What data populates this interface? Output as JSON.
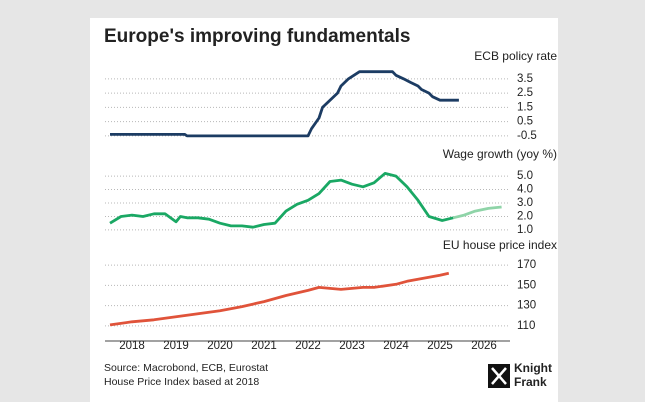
{
  "title": "Europe's improving fundamentals",
  "source": [
    "Source: Macrobond, ECB, Eurostat",
    "House Price Index based at 2018"
  ],
  "logo": [
    "Knight",
    "Frank"
  ],
  "chart_data": [
    {
      "type": "line",
      "title": "ECB policy rate",
      "x": [
        2018.0,
        2019.7,
        2019.75,
        2022.5,
        2022.58,
        2022.75,
        2022.83,
        2023.0,
        2023.17,
        2023.25,
        2023.42,
        2023.67,
        2024.42,
        2024.5,
        2024.67,
        2024.83,
        2025.0,
        2025.08,
        2025.25,
        2025.33,
        2025.5,
        2025.93
      ],
      "series": [
        {
          "color": "#1c3c63",
          "values": [
            -0.4,
            -0.4,
            -0.5,
            -0.5,
            0,
            0.75,
            1.5,
            2.0,
            2.5,
            3.0,
            3.5,
            4.0,
            4.0,
            3.75,
            3.5,
            3.25,
            3.0,
            2.75,
            2.5,
            2.25,
            2.0,
            2.0
          ]
        }
      ],
      "xlim": [
        2018,
        2027
      ],
      "ylim": [
        -1.0,
        4.4
      ],
      "yticks": [
        3.5,
        2.5,
        1.5,
        0.5,
        -0.5
      ],
      "grid": true
    },
    {
      "type": "line",
      "title": "Wage growth (yoy %)",
      "x": [
        2018.0,
        2018.25,
        2018.5,
        2018.75,
        2019.0,
        2019.25,
        2019.5,
        2019.6,
        2019.75,
        2020.0,
        2020.25,
        2020.5,
        2020.75,
        2021.0,
        2021.25,
        2021.5,
        2021.75,
        2022.0,
        2022.25,
        2022.5,
        2022.75,
        2023.0,
        2023.25,
        2023.5,
        2023.75,
        2024.0,
        2024.25,
        2024.5,
        2024.75,
        2025.0,
        2025.25,
        2025.55,
        2025.8,
        2026.05,
        2026.3,
        2026.6,
        2026.9
      ],
      "series": [
        {
          "color": "#1aa864",
          "values": [
            1.5,
            2.0,
            2.1,
            2.0,
            2.2,
            2.2,
            1.6,
            2.0,
            1.9,
            1.9,
            1.8,
            1.5,
            1.3,
            1.3,
            1.2,
            1.4,
            1.5,
            2.4,
            2.9,
            3.2,
            3.7,
            4.6,
            4.7,
            4.4,
            4.2,
            4.5,
            5.2,
            5.0,
            4.2,
            3.2,
            2.0,
            1.7,
            1.9,
            null,
            null,
            null,
            null
          ]
        },
        {
          "color": "#8fd4a8",
          "values": [
            null,
            null,
            null,
            null,
            null,
            null,
            null,
            null,
            null,
            null,
            null,
            null,
            null,
            null,
            null,
            null,
            null,
            null,
            null,
            null,
            null,
            null,
            null,
            null,
            null,
            null,
            null,
            null,
            null,
            null,
            null,
            null,
            1.9,
            2.1,
            2.4,
            2.6,
            2.7
          ]
        }
      ],
      "xlim": [
        2018,
        2027
      ],
      "ylim": [
        0.4,
        5.6
      ],
      "yticks": [
        {
          "value": 5.0,
          "label": "5.0"
        },
        {
          "value": 4.0,
          "label": "4.0"
        },
        {
          "value": 3.0,
          "label": "3.0"
        },
        {
          "value": 2.0,
          "label": "2.0"
        },
        {
          "value": 1.0,
          "label": "1.0"
        }
      ],
      "grid": true
    },
    {
      "type": "line",
      "title": "EU house price index",
      "x": [
        2018.0,
        2018.5,
        2019.0,
        2019.5,
        2020.0,
        2020.5,
        2021.0,
        2021.5,
        2022.0,
        2022.5,
        2022.75,
        2023.0,
        2023.25,
        2023.5,
        2023.75,
        2024.0,
        2024.5,
        2024.75,
        2025.0,
        2025.5,
        2025.7
      ],
      "series": [
        {
          "color": "#e0533a",
          "values": [
            111,
            114,
            116,
            119,
            122,
            125,
            129,
            134,
            140,
            145,
            148,
            147,
            146,
            147,
            148,
            148,
            151,
            154,
            156,
            160,
            162
          ]
        }
      ],
      "xlim": [
        2018,
        2027
      ],
      "ylim": [
        101,
        177
      ],
      "yticks": [
        170,
        150,
        130,
        110
      ],
      "grid": true,
      "xticks": [
        {
          "value": 2018.5,
          "label": "2018"
        },
        {
          "value": 2019.5,
          "label": "2019"
        },
        {
          "value": 2020.5,
          "label": "2020"
        },
        {
          "value": 2021.5,
          "label": "2021"
        },
        {
          "value": 2022.5,
          "label": "2022"
        },
        {
          "value": 2023.5,
          "label": "2023"
        },
        {
          "value": 2024.5,
          "label": "2024"
        },
        {
          "value": 2025.5,
          "label": "2025"
        },
        {
          "value": 2026.5,
          "label": "2026"
        }
      ]
    }
  ]
}
